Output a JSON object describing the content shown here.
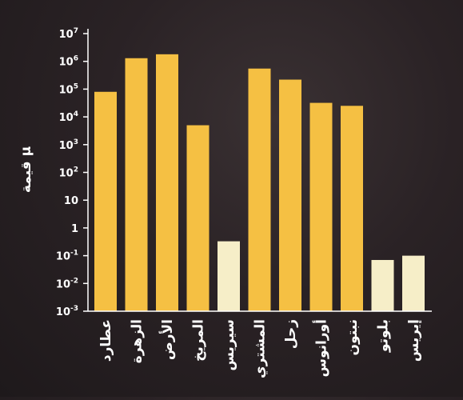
{
  "chart_data": {
    "type": "bar",
    "ylabel": "قيمة μ",
    "yscale": "log",
    "ylim_exponents": [
      -3,
      7
    ],
    "grid": false,
    "legend": "none",
    "y_ticks": [
      {
        "base": "10",
        "exp": "-3"
      },
      {
        "base": "10",
        "exp": "-2"
      },
      {
        "base": "10",
        "exp": "-1"
      },
      {
        "base": "1",
        "exp": ""
      },
      {
        "base": "10",
        "exp": ""
      },
      {
        "base": "10",
        "exp": "2"
      },
      {
        "base": "10",
        "exp": "3"
      },
      {
        "base": "10",
        "exp": "4"
      },
      {
        "base": "10",
        "exp": "5"
      },
      {
        "base": "10",
        "exp": "6"
      },
      {
        "base": "10",
        "exp": "7"
      }
    ],
    "categories": [
      "عطارد",
      "الزهرة",
      "الأرض",
      "المريخ",
      "سيريس",
      "المشتري",
      "زحل",
      "أورانوس",
      "نبتون",
      "بلوتو",
      "إيريس"
    ],
    "values": [
      80000,
      1300000,
      1800000,
      5000,
      0.33,
      550000,
      220000,
      32000,
      25000,
      0.07,
      0.1
    ],
    "colors": [
      "#f5c043",
      "#f5c043",
      "#f5c043",
      "#f5c043",
      "#f6eec8",
      "#f5c043",
      "#f5c043",
      "#f5c043",
      "#f5c043",
      "#f6eec8",
      "#f6eec8"
    ],
    "axis_color": "#ffffff",
    "text_color": "#ffffff"
  }
}
